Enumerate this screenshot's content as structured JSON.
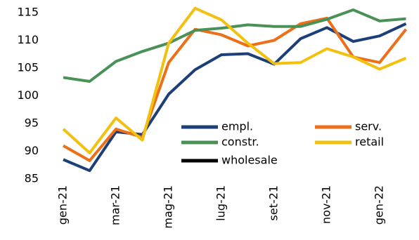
{
  "chart_data": {
    "type": "line",
    "categories": [
      "gen-21",
      null,
      "mar-21",
      null,
      "mag-21",
      null,
      "lug-21",
      null,
      "set-21",
      null,
      "nov-21",
      null,
      "gen-22",
      null
    ],
    "series": [
      {
        "name": "empl.",
        "color": "#1c3f77",
        "values": [
          88.5,
          86.5,
          93.5,
          93,
          100.3,
          104.7,
          107.4,
          107.6,
          105.7,
          110.3,
          112.3,
          109.8,
          110.8,
          113
        ]
      },
      {
        "name": "serv.",
        "color": "#ec6f1a",
        "values": [
          91,
          88.3,
          94,
          92.5,
          106,
          112,
          111,
          109,
          110,
          113,
          114,
          107,
          106,
          112
        ]
      },
      {
        "name": "constr.",
        "color": "#4a9158",
        "values": [
          103.3,
          102.6,
          106.2,
          108,
          109.5,
          111.8,
          112.2,
          112.8,
          112.5,
          112.5,
          113.8,
          115.5,
          113.5,
          113.9
        ]
      },
      {
        "name": "retail",
        "color": "#f2c00f",
        "values": [
          94,
          89.7,
          96,
          92,
          109.5,
          115.8,
          113.7,
          109.5,
          105.8,
          106,
          108.5,
          107,
          104.8,
          106.8
        ]
      },
      {
        "name": "wholesale",
        "color": "#000000",
        "values": [
          null,
          null,
          null,
          null,
          null,
          null,
          null,
          null,
          null,
          null,
          null,
          null,
          null,
          null
        ]
      }
    ],
    "ylim": [
      85,
      115
    ],
    "yticks": [
      85,
      90,
      95,
      100,
      105,
      110,
      115
    ],
    "grid": false
  }
}
